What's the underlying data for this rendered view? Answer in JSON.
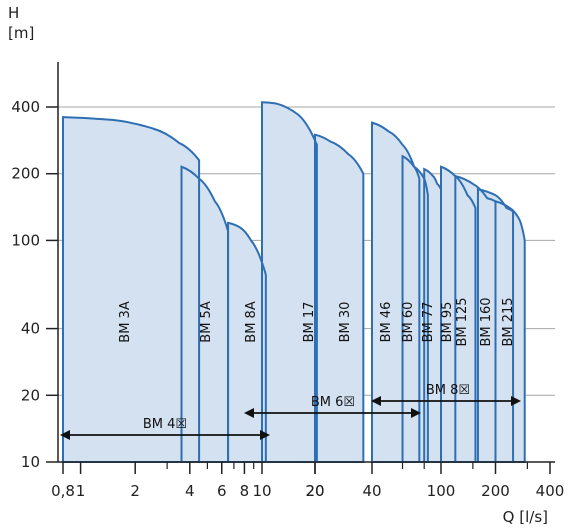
{
  "chart_data": {
    "type": "area",
    "y_axis": {
      "label": "H",
      "unit": "[m]",
      "scale": "log",
      "lim": [
        10,
        400
      ],
      "ticks": [
        10,
        20,
        40,
        100,
        200,
        400
      ],
      "tick_labels": [
        "10",
        "20",
        "40",
        "100",
        "200",
        "400"
      ],
      "grid": true
    },
    "x_axis": {
      "label": "Q [l/s]",
      "scale": "log",
      "segments": [
        {
          "range": [
            0.8,
            10
          ],
          "tick_values": [
            0.8,
            1,
            2,
            4,
            6,
            8,
            10
          ],
          "tick_labels": [
            "0,8",
            "1",
            "2",
            "4",
            "6",
            "8",
            "10"
          ],
          "minor_ticks": [
            3,
            5,
            7,
            9
          ]
        },
        {
          "range": [
            10,
            20
          ],
          "tick_values": [
            20
          ],
          "tick_labels": [
            "20"
          ],
          "minor_ticks": []
        },
        {
          "range": [
            20,
            40
          ],
          "tick_values": [
            20,
            40
          ],
          "tick_labels": [
            "20",
            "40"
          ],
          "minor_ticks": []
        },
        {
          "range": [
            40,
            100
          ],
          "tick_values": [
            100
          ],
          "tick_labels": [
            "100"
          ],
          "minor_ticks": [
            60,
            80
          ]
        },
        {
          "range": [
            100,
            400
          ],
          "tick_values": [
            200,
            400
          ],
          "tick_labels": [
            "200",
            "400"
          ],
          "minor_ticks": [
            150,
            300
          ]
        }
      ]
    },
    "series": [
      {
        "name": "BM 3A",
        "segment": 0,
        "q_max": 4.5,
        "curve": [
          [
            0.8,
            360
          ],
          [
            1.5,
            350
          ],
          [
            2.5,
            320
          ],
          [
            3.5,
            275
          ],
          [
            4.5,
            230
          ]
        ],
        "q_end": 4.5,
        "h_end": 150
      },
      {
        "name": "BM 5A",
        "segment": 0,
        "q_start": 3.6,
        "curve": [
          [
            3.6,
            215
          ],
          [
            4.5,
            190
          ],
          [
            5.5,
            150
          ],
          [
            6.5,
            110
          ]
        ],
        "q_end": 6.5,
        "h_end": 80
      },
      {
        "name": "BM 8A",
        "segment": 0,
        "q_start": 6.5,
        "curve": [
          [
            6.5,
            120
          ],
          [
            7.5,
            115
          ],
          [
            8.7,
            100
          ],
          [
            10.5,
            70
          ]
        ],
        "q_end": 10.5,
        "h_end": 45
      },
      {
        "name": "BM 17",
        "segment": 1,
        "q_start": 10,
        "curve": [
          [
            10,
            420
          ],
          [
            12,
            415
          ],
          [
            16,
            370
          ],
          [
            20.5,
            270
          ]
        ],
        "q_end": 20.5,
        "h_end": 190
      },
      {
        "name": "BM 30",
        "segment": 2,
        "q_start": 20,
        "curve": [
          [
            20,
            300
          ],
          [
            24,
            280
          ],
          [
            30,
            245
          ],
          [
            36,
            200
          ]
        ],
        "q_end": 36,
        "h_end": 150
      },
      {
        "name": "BM 46",
        "segment": 3,
        "q_start": 40,
        "curve": [
          [
            40,
            340
          ],
          [
            50,
            310
          ],
          [
            60,
            270
          ],
          [
            70,
            215
          ],
          [
            75,
            190
          ]
        ],
        "q_end": 75,
        "h_end": 150
      },
      {
        "name": "BM 60",
        "segment": 3,
        "q_start": 60,
        "curve": [
          [
            60,
            240
          ],
          [
            70,
            215
          ],
          [
            80,
            190
          ],
          [
            84,
            160
          ]
        ],
        "q_end": 84,
        "h_end": 120
      },
      {
        "name": "BM 77",
        "segment": 3,
        "q_start": 80,
        "curve": [
          [
            80,
            210
          ],
          [
            90,
            195
          ],
          [
            95,
            180
          ],
          [
            100,
            170
          ]
        ],
        "q_end": 100,
        "h_end": 130
      },
      {
        "name": "BM 95",
        "segment": 4,
        "q_start": 100,
        "curve": [
          [
            100,
            215
          ],
          [
            120,
            195
          ],
          [
            140,
            160
          ],
          [
            155,
            140
          ]
        ],
        "q_end": 155,
        "h_end": 120
      },
      {
        "name": "BM 125",
        "segment": 4,
        "q_start": 120,
        "curve": [
          [
            120,
            195
          ],
          [
            150,
            180
          ],
          [
            180,
            155
          ],
          [
            200,
            150
          ]
        ],
        "q_end": 200,
        "h_end": 120
      },
      {
        "name": "BM 160",
        "segment": 4,
        "q_start": 160,
        "curve": [
          [
            160,
            170
          ],
          [
            200,
            160
          ],
          [
            230,
            140
          ],
          [
            250,
            135
          ]
        ],
        "q_end": 250,
        "h_end": 115
      },
      {
        "name": "BM 215",
        "segment": 4,
        "q_start": 200,
        "curve": [
          [
            200,
            150
          ],
          [
            240,
            140
          ],
          [
            270,
            125
          ],
          [
            290,
            100
          ]
        ],
        "q_end": 290,
        "h_end": 85
      }
    ],
    "size_ranges": [
      {
        "label": "BM 4☒",
        "from_series": "BM 3A",
        "to_series": "BM 8A"
      },
      {
        "label": "BM 6☒",
        "from_series": "BM 17",
        "to_series": "BM 60"
      },
      {
        "label": "BM 8☒",
        "from_series": "BM 46",
        "to_series": "BM 215"
      }
    ],
    "colors": {
      "fill": "#d3e1f1",
      "stroke": "#2e6fb3",
      "grid": "#a6a6a6",
      "arrow": "#111111"
    }
  }
}
